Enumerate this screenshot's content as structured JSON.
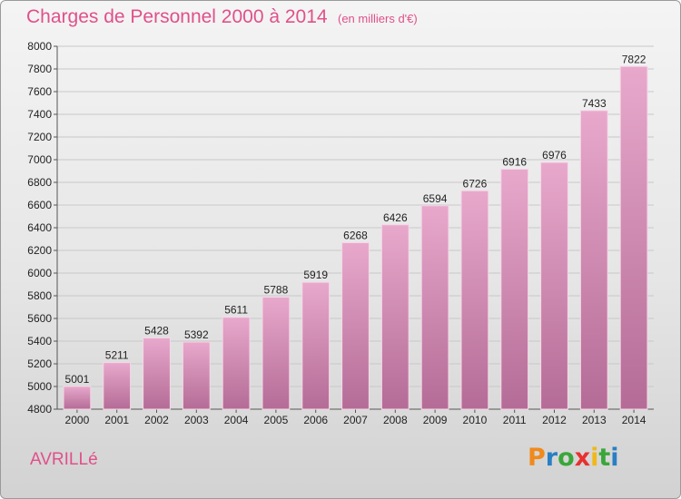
{
  "title": "Charges de Personnel 2000 à 2014",
  "subtitle": "(en milliers d'€)",
  "commune": "AVRILLé",
  "logo": {
    "letters": [
      "P",
      "r",
      "o",
      "x",
      "i",
      "t",
      "i"
    ],
    "colors": [
      "#f08a1c",
      "#2a7fc4",
      "#3aa63a",
      "#e83030",
      "#f0b818",
      "#3aa63a",
      "#2a7fc4"
    ]
  },
  "colors": {
    "bar_top": "#e8a8cc",
    "bar_bottom": "#b46c96",
    "title": "#e0508a"
  },
  "chart_data": {
    "type": "bar",
    "categories": [
      "2000",
      "2001",
      "2002",
      "2003",
      "2004",
      "2005",
      "2006",
      "2007",
      "2008",
      "2009",
      "2010",
      "2011",
      "2012",
      "2013",
      "2014"
    ],
    "values": [
      5001,
      5211,
      5428,
      5392,
      5611,
      5788,
      5919,
      6268,
      6426,
      6594,
      6726,
      6916,
      6976,
      7433,
      7822
    ],
    "ylim": [
      4800,
      8000
    ],
    "yticks": [
      4800,
      5000,
      5200,
      5400,
      5600,
      5800,
      6000,
      6200,
      6400,
      6600,
      6800,
      7000,
      7200,
      7400,
      7600,
      7800,
      8000
    ],
    "grid": true,
    "data_labels": true
  }
}
